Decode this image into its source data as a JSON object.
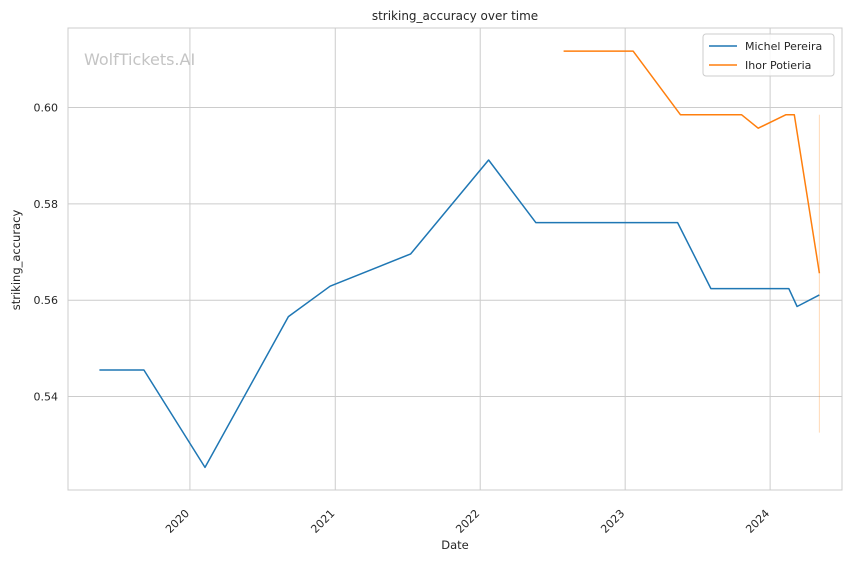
{
  "chart_data": {
    "type": "line",
    "title": "striking_accuracy over time",
    "xlabel": "Date",
    "ylabel": "striking_accuracy",
    "watermark": "WolfTickets.AI",
    "x_ticks": [
      2020,
      2021,
      2022,
      2023,
      2024
    ],
    "y_ticks": [
      "0.54",
      "0.56",
      "0.58",
      "0.60"
    ],
    "xlim": [
      "2019-02-28",
      "2024-06-30"
    ],
    "ylim": [
      0.5206,
      0.6165
    ],
    "grid": true,
    "legend_position": "top-right",
    "series": [
      {
        "name": "Michel Pereira",
        "color": "#1f77b4",
        "points": [
          [
            "2019-05-18",
            0.5455
          ],
          [
            "2019-09-07",
            0.5455
          ],
          [
            "2020-02-08",
            0.5253
          ],
          [
            "2020-09-05",
            0.5566
          ],
          [
            "2020-12-19",
            0.5629
          ],
          [
            "2021-07-10",
            0.5696
          ],
          [
            "2022-01-22",
            0.5891
          ],
          [
            "2022-05-21",
            0.5761
          ],
          [
            "2023-05-13",
            0.5761
          ],
          [
            "2023-08-05",
            0.5624
          ],
          [
            "2024-02-17",
            0.5624
          ],
          [
            "2024-03-09",
            0.5587
          ],
          [
            "2024-05-04",
            0.5611
          ]
        ]
      },
      {
        "name": "Ihor Potieria",
        "color": "#ff7f0e",
        "points": [
          [
            "2022-07-30",
            0.6117
          ],
          [
            "2023-01-21",
            0.6117
          ],
          [
            "2023-05-20",
            0.5985
          ],
          [
            "2023-10-21",
            0.5985
          ],
          [
            "2023-12-02",
            0.5957
          ],
          [
            "2024-02-10",
            0.5985
          ],
          [
            "2024-03-02",
            0.5985
          ],
          [
            "2024-05-04",
            0.5656
          ]
        ],
        "error_bar": {
          "x": "2024-05-04",
          "low": 0.5325,
          "high": 0.5985
        }
      }
    ]
  }
}
